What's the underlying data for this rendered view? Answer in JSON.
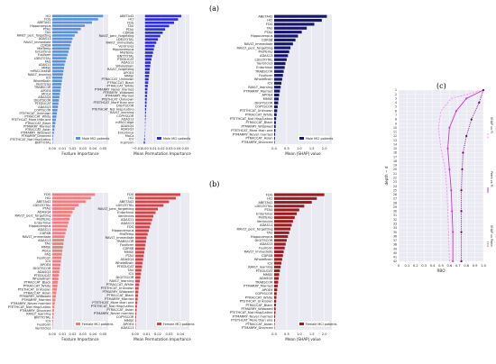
{
  "panel_labels": [
    "(a)",
    "(b)",
    "(c)"
  ],
  "chart_data": [
    {
      "type": "bar",
      "orientation": "horizontal",
      "row": 0,
      "col": 0,
      "legend": "Male MCI patients",
      "legend_position": "bottom-right",
      "xlabel": "Feature Importance",
      "xticks": [
        "0.00",
        "0.01",
        "0.02",
        "0.03",
        "0.04",
        "0.05"
      ],
      "xlim": [
        0,
        0.055
      ],
      "color": "#5b93d8",
      "categories": [
        "HCI",
        "FDG",
        "ABETA42",
        "Hippocampus",
        "PTAU",
        "TAU",
        "RAVLT_perc_forgetting",
        "ADAS13",
        "RAVLT_immediate",
        "CDRSB",
        "MidTemp",
        "Entorhinal",
        "Fusiform",
        "LDELTOTAL",
        "FAQ",
        "ADAS11",
        "MMSE",
        "mPACCtrailsB",
        "RAVLT_learning",
        "ICV",
        "WholeBrain",
        "Ventricles",
        "TRABSCOR",
        "APOE4",
        "MOCA",
        "ADASQ4",
        "DIGITSCOR",
        "PTEDUCAT",
        "ADASQ3",
        "COPYSCOR",
        "PTETHCAT_Unknown",
        "PTRACCAT_White",
        "PTETHCAT_More than one",
        "PTRACCAT_Black",
        "PTMARRY_Married",
        "PTRACCAT_Asian",
        "PTMARRY_Widowed",
        "PTMARRY_Divorced",
        "PTETHCAT_Not Hisp/Latino",
        "BNTTOTAL"
      ],
      "values": [
        0.05,
        0.045,
        0.039,
        0.032,
        0.028,
        0.025,
        0.022,
        0.02,
        0.019,
        0.018,
        0.017,
        0.016,
        0.015,
        0.014,
        0.013,
        0.012,
        0.0115,
        0.011,
        0.0105,
        0.01,
        0.0095,
        0.009,
        0.0085,
        0.008,
        0.0075,
        0.007,
        0.0065,
        0.006,
        0.0055,
        0.005,
        0.0045,
        0.004,
        0.0035,
        0.003,
        0.0025,
        0.002,
        0.0015,
        0.001,
        0.0007,
        0.0004
      ]
    },
    {
      "type": "bar",
      "orientation": "horizontal",
      "row": 0,
      "col": 1,
      "legend": "Male MCI patients",
      "legend_position": "bottom-right",
      "xlabel": "Mean Permutation Importance",
      "xticks": [
        "−0.01",
        "0.00",
        "0.01",
        "0.02",
        "0.03",
        "0.04",
        "0.05"
      ],
      "xlim": [
        -0.012,
        0.055
      ],
      "color": "#2f2fd8",
      "categories": [
        "ABETA42",
        "HCI",
        "FDG",
        "TAU",
        "PTAU",
        "CDRSB",
        "RAVLT_perc_forgetting",
        "LDELTOTAL",
        "RAVLT_immediate",
        "Ventricles",
        "Hippocampus",
        "MidTemp",
        "BNTTOTAL",
        "PTEDUCAT",
        "ADAS11",
        "WholeBrain",
        "RAVLT_forgetting",
        "APOE4",
        "MMSE",
        "PTRACCAT_Unknown",
        "PTRACCAT_Black",
        "PTRACCAT_White",
        "PTMARRY_Never married",
        "PTMARRY_Widowed",
        "PTMARRY_Married",
        "PTETHCAT_Unknown",
        "PTETHCAT_More than one",
        "DIGITSCOR",
        "PTETHCAT_Not Hisp/Latino",
        "RAVLT_learning",
        "COPYSCOR",
        "ADAS13",
        "mPACCdigit",
        "ADASQ4",
        "ADASQ3",
        "Entorhinal",
        "MoCa",
        "ICV",
        "Fusiform"
      ],
      "values": [
        0.045,
        0.041,
        0.036,
        0.03,
        0.025,
        0.022,
        0.019,
        0.016,
        0.014,
        0.012,
        0.011,
        0.01,
        0.009,
        0.008,
        0.007,
        0.0065,
        0.006,
        0.0055,
        0.005,
        0.0045,
        0.004,
        0.0035,
        0.003,
        0.0028,
        0.0025,
        0.0022,
        0.002,
        0.0018,
        0.0015,
        0.0012,
        0.001,
        0.0008,
        0.0006,
        0.0004,
        0.0002,
        -0.0003,
        -0.0006,
        -0.001,
        -0.0015
      ]
    },
    {
      "type": "bar",
      "orientation": "horizontal",
      "row": 0,
      "col": 2,
      "legend": "Male MCI patients",
      "legend_position": "bottom-right",
      "xlabel": "Mean |SHAP| value",
      "xticks": [
        "0.0",
        "0.5",
        "1.0",
        "1.5",
        "2.0"
      ],
      "xlim": [
        0,
        2.3
      ],
      "color": "#16166e",
      "categories": [
        "ABETA42",
        "HCI",
        "FDG",
        "TAU",
        "PTAU",
        "Hippocampus",
        "CDRSB",
        "RAVLT_immediate",
        "RAVLT_perc_forgetting",
        "MidTemp",
        "ADAS13",
        "LDELTOTAL",
        "Ventricles",
        "Entorhinal",
        "TRABSCOR",
        "Fusiform",
        "WholeBrain",
        "ICV",
        "RAVLT_learning",
        "PTMARRY_Married",
        "APOE4",
        "MMSE",
        "DIGITSCOR",
        "COPYSCOR",
        "PTETHCAT_Unknown",
        "PTRACCAT_White",
        "PTETHCAT_Not Hisp/Latino",
        "PTRACCAT_Black",
        "PTMARRY_Widowed",
        "PTETHCAT_More than one",
        "PTMARRY_Never married",
        "PTRACCAT_Asian",
        "PTMARRY_Divorced"
      ],
      "values": [
        2.1,
        1.9,
        1.6,
        1.3,
        1.1,
        0.95,
        0.85,
        0.75,
        0.65,
        0.6,
        0.55,
        0.5,
        0.45,
        0.42,
        0.38,
        0.35,
        0.32,
        0.29,
        0.26,
        0.23,
        0.2,
        0.18,
        0.16,
        0.14,
        0.12,
        0.1,
        0.08,
        0.07,
        0.06,
        0.05,
        0.04,
        0.03,
        0.02
      ]
    },
    {
      "type": "bar",
      "orientation": "horizontal",
      "row": 1,
      "col": 0,
      "legend": "Female MCI patients",
      "legend_position": "bottom-right",
      "xlabel": "Feature Importance",
      "xticks": [
        "0.00",
        "0.01",
        "0.02",
        "0.03",
        "0.04",
        "0.05"
      ],
      "xlim": [
        0,
        0.055
      ],
      "color": "#f08080",
      "categories": [
        "FDG",
        "HCI",
        "ABETA42",
        "LDELTOTAL",
        "PTAU",
        "ADASQ4",
        "RAVLT_perc_forgetting",
        "MidTemp",
        "Entorhinal",
        "Hippocampus",
        "ADAS11",
        "CDRSB",
        "RAVLT_immediate",
        "ADAS13",
        "TAU",
        "MMSE",
        "MoCa",
        "FAQ",
        "Fusiform",
        "ICV",
        "APOE4",
        "DIGITSCOR",
        "ADASQ3",
        "PTEDUCAT",
        "WholeBrain",
        "PTRACCAT_Black",
        "PTRACCAT_White",
        "PTETHCAT_Unknown",
        "PTRACCAT_Asian",
        "PTMARRY_Widowed",
        "PTMARRY_Married",
        "PTMARRY_Never married",
        "PTETHCAT_Not Hisp/Latino",
        "PTMARRY_Divorced",
        "RAVLT_learning",
        "BNTTOTAL",
        "ICV",
        "Fusiform",
        "Ventricles"
      ],
      "values": [
        0.042,
        0.038,
        0.033,
        0.026,
        0.022,
        0.02,
        0.018,
        0.017,
        0.016,
        0.015,
        0.014,
        0.013,
        0.012,
        0.0115,
        0.011,
        0.0105,
        0.01,
        0.0095,
        0.009,
        0.0085,
        0.008,
        0.0075,
        0.007,
        0.0065,
        0.006,
        0.0055,
        0.005,
        0.0045,
        0.004,
        0.0035,
        0.003,
        0.0025,
        0.002,
        0.0017,
        0.0014,
        0.0011,
        0.0008,
        0.0005,
        0.0003
      ]
    },
    {
      "type": "bar",
      "orientation": "horizontal",
      "row": 1,
      "col": 1,
      "legend": "Female MCI patients",
      "legend_position": "bottom-right",
      "xlabel": "Mean Permutation Importance",
      "xticks": [
        "0.00",
        "0.01",
        "0.02",
        "0.03",
        "0.04"
      ],
      "xlim": [
        0,
        0.048
      ],
      "color": "#d64545",
      "categories": [
        "FDG",
        "HCI",
        "ABETA42",
        "LDELTOTAL",
        "RAVLT_perc_forgetting",
        "Entorhinal",
        "Ventricles",
        "ADAS11",
        "ADAS13",
        "FDG",
        "Hippocampus",
        "MidTemp",
        "RAVLT_immediate",
        "TRABSCOR",
        "Fusiform",
        "CDRSB",
        "MMSE",
        "PTAU",
        "ADASQ4",
        "WholeBrain",
        "PTEDUCAT",
        "TAU",
        "ICV",
        "DIGITSCOR",
        "RAVLT_learning",
        "PTRACCAT_White",
        "PTETHCAT_Unknown",
        "PTMARRY_Widowed",
        "PTRACCAT_Black",
        "PTMARRY_Married",
        "PTETHCAT_More than one",
        "PTETHCAT_Not Hisp/Latino",
        "PTRACCAT_Asian",
        "PTMARRY_Never married",
        "COPYSCOR",
        "MMSE",
        "APOE4",
        "ADAS13"
      ],
      "values": [
        0.04,
        0.036,
        0.03,
        0.025,
        0.02,
        0.018,
        0.016,
        0.015,
        0.014,
        0.013,
        0.012,
        0.011,
        0.01,
        0.0095,
        0.009,
        0.0085,
        0.008,
        0.0075,
        0.007,
        0.0065,
        0.006,
        0.0055,
        0.005,
        0.0045,
        0.004,
        0.0035,
        0.003,
        0.0027,
        0.0024,
        0.0021,
        0.0018,
        0.0015,
        0.0012,
        0.001,
        0.0008,
        0.0006,
        0.0004,
        0.0002
      ]
    },
    {
      "type": "bar",
      "orientation": "horizontal",
      "row": 1,
      "col": 2,
      "legend": "Female MCI patients",
      "legend_position": "bottom-right",
      "xlabel": "Mean |SHAP| value",
      "xticks": [
        "0.0",
        "0.5",
        "1.0",
        "1.5",
        "2.0"
      ],
      "xlim": [
        0,
        2.3
      ],
      "color": "#9c1c1c",
      "categories": [
        "FDG",
        "HCI",
        "ABETA42",
        "LDELTOTAL",
        "PTAU",
        "Entorhinal",
        "MidTemp",
        "Ventricles",
        "ADAS11",
        "RAVLT_perc_forgetting",
        "TAU",
        "Hippocampus",
        "DIGITSCOR",
        "ADAS13",
        "Fusiform",
        "RAVLT_immediate",
        "CDRSB",
        "WholeBrain",
        "ICV",
        "RAVLT_learning",
        "PTEDUCAT",
        "MMSE",
        "ADASQ4",
        "TRABSCOR",
        "PTMARRY_Married",
        "APOE4",
        "COPYSCOR",
        "PTRACCAT_White",
        "PTETHCAT_Unknown",
        "PTRACCAT_Black",
        "PTMARRY_Widowed",
        "PTETHCAT_Not Hisp/Latino",
        "PTMARRY_Never married",
        "PTETHCAT_More than one",
        "PTRACCAT_Asian",
        "PTMARRY_Divorced"
      ],
      "values": [
        2.0,
        1.7,
        1.5,
        1.2,
        1.0,
        0.9,
        0.82,
        0.75,
        0.7,
        0.65,
        0.6,
        0.55,
        0.5,
        0.46,
        0.42,
        0.38,
        0.35,
        0.32,
        0.29,
        0.26,
        0.23,
        0.2,
        0.18,
        0.16,
        0.14,
        0.12,
        0.1,
        0.09,
        0.08,
        0.07,
        0.06,
        0.05,
        0.04,
        0.03,
        0.02,
        0.01
      ]
    },
    {
      "type": "line",
      "panel": "(c)",
      "xlabel": "RBO",
      "ylabel": "depth − d",
      "xticks": [
        "0",
        "0.1",
        "0.2",
        "0.3",
        "0.4",
        "0.5",
        "0.6",
        "0.7",
        "0.8",
        "0.9",
        "1.0"
      ],
      "xlim": [
        0,
        1.0
      ],
      "yticks": [
        "1",
        "2",
        "3",
        "4",
        "5",
        "6",
        "7",
        "8",
        "9",
        "10",
        "11",
        "12",
        "13",
        "14",
        "15",
        "16",
        "17",
        "18",
        "19",
        "20",
        "21",
        "22",
        "23",
        "24",
        "25",
        "26",
        "27",
        "28",
        "29",
        "30",
        "31",
        "32",
        "33",
        "34",
        "35",
        "36",
        "37",
        "38",
        "39",
        "40",
        "41",
        "42"
      ],
      "ylim": [
        1,
        42
      ],
      "y_inverted": true,
      "grid": true,
      "legend_position": "right",
      "series": [
        {
          "name": "SHAP vs FI",
          "color": "#ff88ff",
          "style": "dashed",
          "marker": "none",
          "points": [
            [
              1.0,
              1
            ],
            [
              0.62,
              3
            ],
            [
              0.5,
              6
            ],
            [
              0.47,
              10
            ],
            [
              0.5,
              15
            ],
            [
              0.55,
              20
            ],
            [
              0.57,
              25
            ],
            [
              0.58,
              30
            ],
            [
              0.59,
              35
            ],
            [
              0.6,
              42
            ]
          ]
        },
        {
          "name": "Perm vs FI",
          "color": "#cc33cc",
          "style": "solid",
          "marker": "diamond",
          "points": [
            [
              1.0,
              1
            ],
            [
              0.8,
              3
            ],
            [
              0.68,
              6
            ],
            [
              0.6,
              10
            ],
            [
              0.58,
              15
            ],
            [
              0.6,
              20
            ],
            [
              0.62,
              25
            ],
            [
              0.63,
              30
            ],
            [
              0.64,
              35
            ],
            [
              0.64,
              42
            ]
          ]
        },
        {
          "name": "SHAP vs Perm",
          "color": "#700070",
          "style": "dotted",
          "marker": "circle",
          "points": [
            [
              1.0,
              1
            ],
            [
              0.95,
              4
            ],
            [
              0.86,
              8
            ],
            [
              0.8,
              12
            ],
            [
              0.76,
              16
            ],
            [
              0.75,
              20
            ],
            [
              0.74,
              25
            ],
            [
              0.74,
              30
            ],
            [
              0.74,
              35
            ],
            [
              0.74,
              42
            ]
          ]
        }
      ]
    }
  ]
}
